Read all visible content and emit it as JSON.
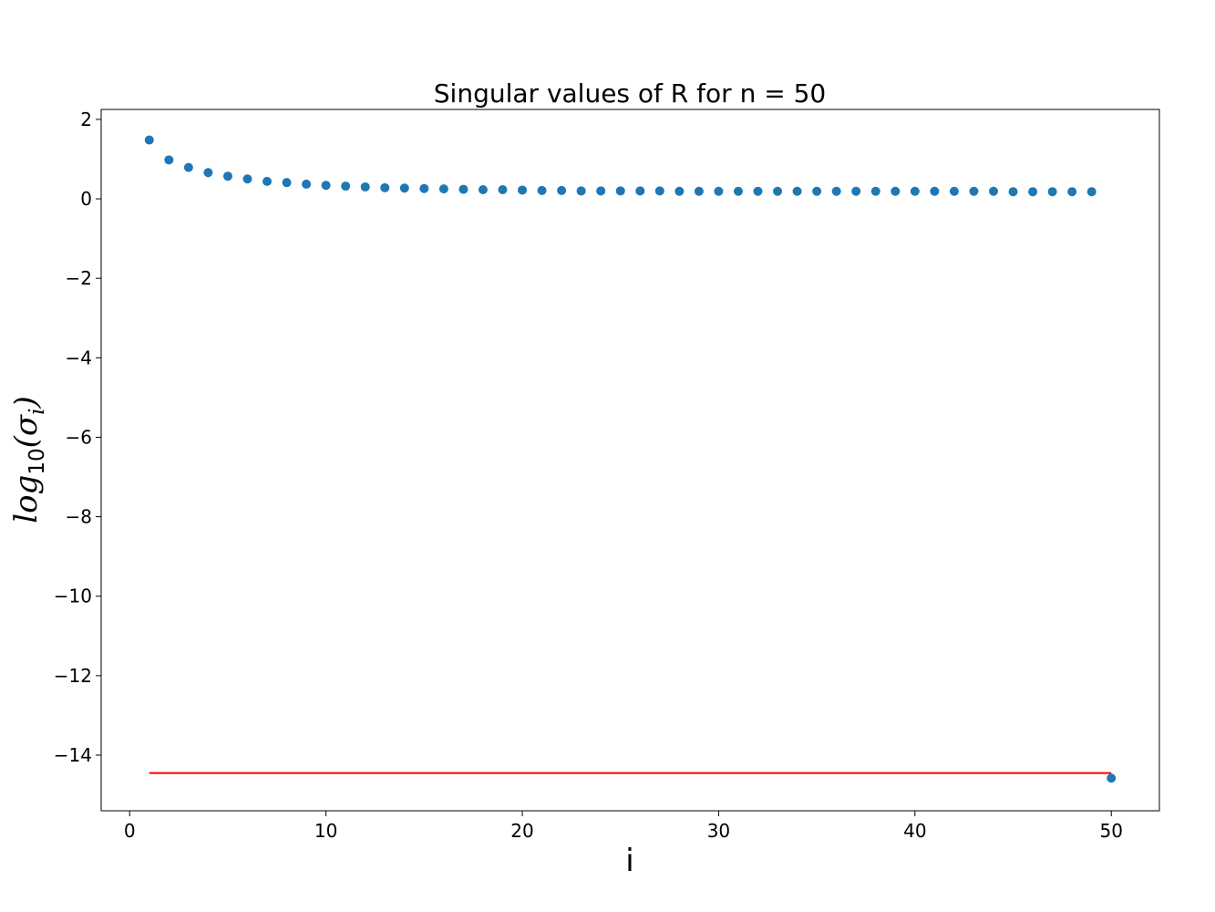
{
  "chart_data": {
    "type": "scatter",
    "title": "Singular values of R for n = 50",
    "xlabel": "i",
    "ylabel": {
      "base": "log",
      "subscript": "10",
      "open": "(",
      "symbol": "σ",
      "symbol_subscript": "i",
      "close": ")"
    },
    "xlim": [
      -1.45,
      52.45
    ],
    "ylim": [
      -15.4,
      2.25
    ],
    "xticks": [
      0,
      10,
      20,
      30,
      40,
      50
    ],
    "xtick_labels": [
      "0",
      "10",
      "20",
      "30",
      "40",
      "50"
    ],
    "yticks": [
      2,
      0,
      -2,
      -4,
      -6,
      -8,
      -10,
      -12,
      -14
    ],
    "ytick_labels": [
      "2",
      "0",
      "−2",
      "−4",
      "−6",
      "−8",
      "−10",
      "−12",
      "−14"
    ],
    "grid": false,
    "series": [
      {
        "kind": "scatter",
        "color": "#1f77b4",
        "x": [
          1,
          2,
          3,
          4,
          5,
          6,
          7,
          8,
          9,
          10,
          11,
          12,
          13,
          14,
          15,
          16,
          17,
          18,
          19,
          20,
          21,
          22,
          23,
          24,
          25,
          26,
          27,
          28,
          29,
          30,
          31,
          32,
          33,
          34,
          35,
          36,
          37,
          38,
          39,
          40,
          41,
          42,
          43,
          44,
          45,
          46,
          47,
          48,
          49,
          50
        ],
        "y": [
          1.48,
          0.98,
          0.79,
          0.66,
          0.57,
          0.5,
          0.44,
          0.41,
          0.37,
          0.34,
          0.32,
          0.3,
          0.28,
          0.27,
          0.26,
          0.25,
          0.24,
          0.23,
          0.23,
          0.22,
          0.21,
          0.21,
          0.2,
          0.2,
          0.2,
          0.2,
          0.2,
          0.19,
          0.19,
          0.19,
          0.19,
          0.19,
          0.19,
          0.19,
          0.19,
          0.19,
          0.19,
          0.19,
          0.19,
          0.19,
          0.19,
          0.19,
          0.19,
          0.19,
          0.18,
          0.18,
          0.18,
          0.18,
          0.18,
          -14.58
        ]
      },
      {
        "kind": "line",
        "color": "#ff0000",
        "x": [
          1,
          50
        ],
        "y": [
          -14.45,
          -14.45
        ]
      }
    ]
  }
}
